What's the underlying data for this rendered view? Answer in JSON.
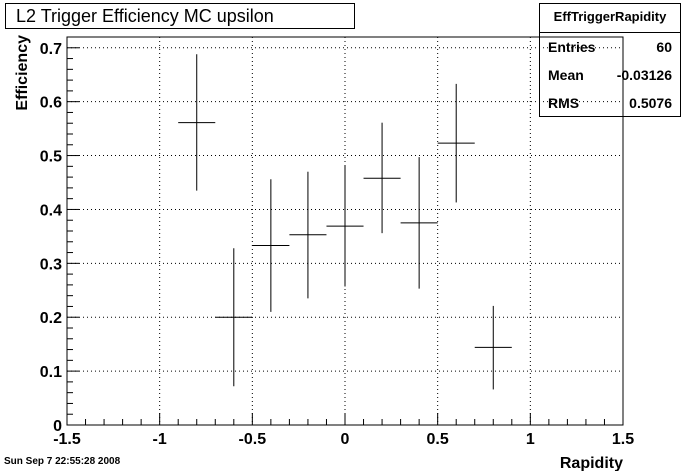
{
  "chart_data": {
    "type": "scatter",
    "title": "L2 Trigger Efficiency MC upsilon",
    "xlabel": "Rapidity",
    "ylabel": "Efficiency",
    "xlim": [
      -1.5,
      1.5
    ],
    "ylim": [
      0,
      0.72
    ],
    "x_ticks": [
      "-1.5",
      "-1",
      "-0.5",
      "0",
      "0.5",
      "1",
      "1.5"
    ],
    "y_ticks": [
      "0",
      "0.1",
      "0.2",
      "0.3",
      "0.4",
      "0.5",
      "0.6",
      "0.7"
    ],
    "grid": true,
    "points": [
      {
        "x": -0.8,
        "xerr": 0.1,
        "y": 0.561,
        "ylo": 0.435,
        "yhi": 0.688
      },
      {
        "x": -0.6,
        "xerr": 0.1,
        "y": 0.2,
        "ylo": 0.072,
        "yhi": 0.328
      },
      {
        "x": -0.4,
        "xerr": 0.1,
        "y": 0.333,
        "ylo": 0.21,
        "yhi": 0.456
      },
      {
        "x": -0.2,
        "xerr": 0.1,
        "y": 0.353,
        "ylo": 0.235,
        "yhi": 0.47
      },
      {
        "x": 0.0,
        "xerr": 0.1,
        "y": 0.369,
        "ylo": 0.257,
        "yhi": 0.481
      },
      {
        "x": 0.2,
        "xerr": 0.1,
        "y": 0.458,
        "ylo": 0.356,
        "yhi": 0.561
      },
      {
        "x": 0.4,
        "xerr": 0.1,
        "y": 0.375,
        "ylo": 0.253,
        "yhi": 0.497
      },
      {
        "x": 0.6,
        "xerr": 0.1,
        "y": 0.523,
        "ylo": 0.413,
        "yhi": 0.633
      },
      {
        "x": 0.8,
        "xerr": 0.1,
        "y": 0.144,
        "ylo": 0.066,
        "yhi": 0.221
      }
    ],
    "stats": {
      "name": "EffTriggerRapidity",
      "entries_label": "Entries",
      "entries": "60",
      "mean_label": "Mean",
      "mean": "-0.03126",
      "rms_label": "RMS",
      "rms": "0.5076"
    }
  },
  "timestamp": "Sun Sep  7 22:55:28 2008"
}
